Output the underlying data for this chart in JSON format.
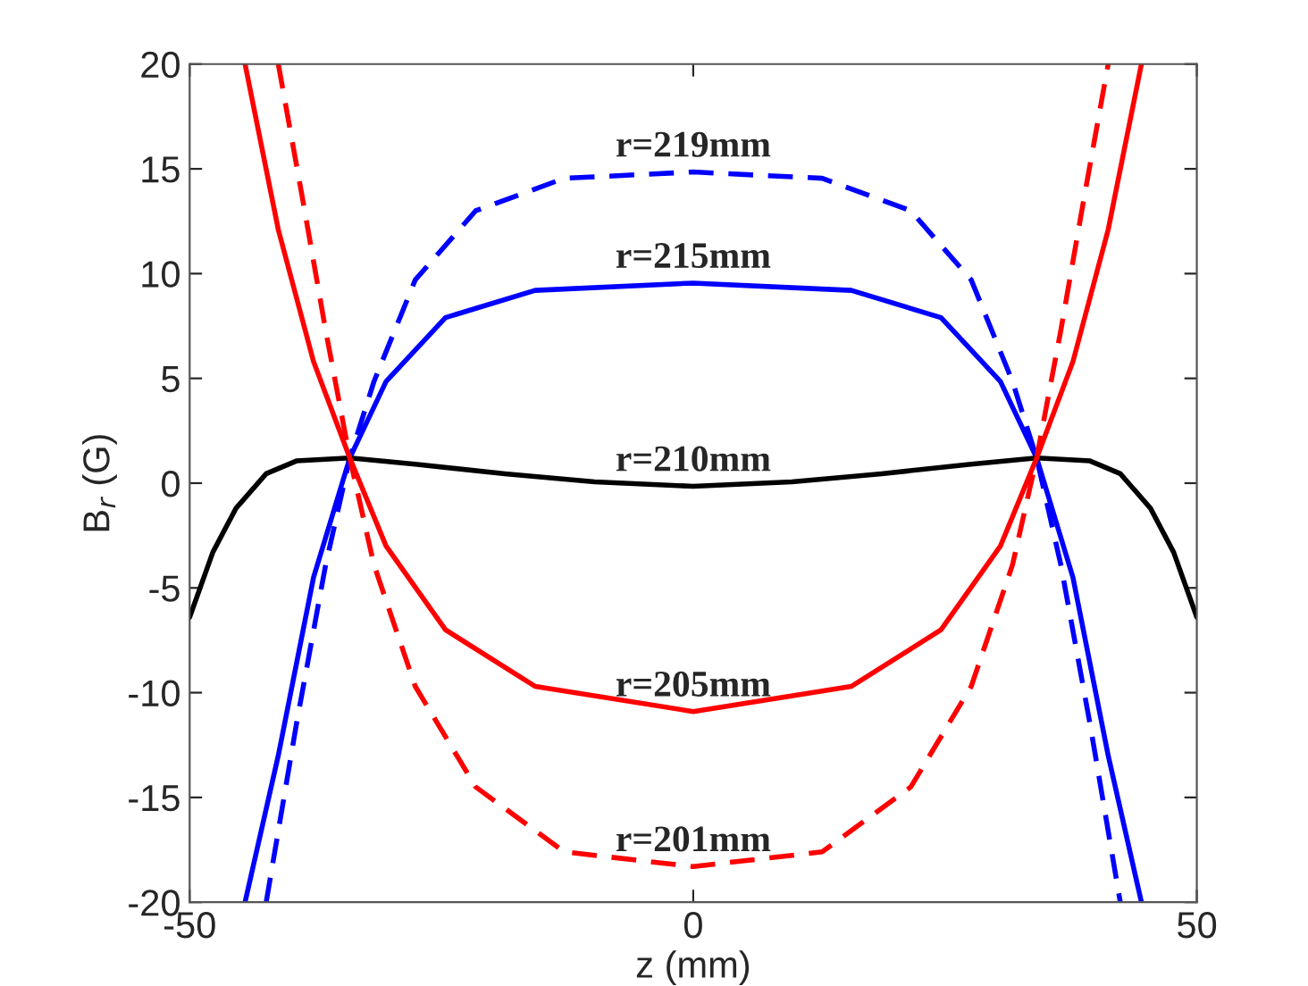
{
  "chart_data": {
    "type": "line",
    "xlabel": "z (mm)",
    "ylabel": "B$_{r}$ (G)",
    "xlim": [
      -50,
      50
    ],
    "xticks": [
      -50,
      0,
      50
    ],
    "ylim": [
      -20,
      20
    ],
    "yticks": [
      -20,
      -15,
      -10,
      -5,
      0,
      5,
      10,
      15,
      20
    ],
    "grid": false,
    "legend": false,
    "series": [
      {
        "name": "r=219mm",
        "color": "#0000ff",
        "line_style": "dashed",
        "x": [
          -42.4,
          -39.4,
          -36.5,
          -34.1,
          -31.7,
          -27.6,
          -21.6,
          -12.8,
          0,
          12.8,
          21.6,
          27.6,
          31.7,
          34.1,
          36.5,
          39.4,
          42.4
        ],
        "values": [
          -20,
          -11.5,
          -3.9,
          1.2,
          4.85,
          9.7,
          13,
          14.55,
          14.85,
          14.55,
          13,
          9.7,
          4.85,
          1.2,
          -3.9,
          -11.5,
          -20
        ]
      },
      {
        "name": "r=215mm",
        "color": "#0000ff",
        "line_style": "solid",
        "x": [
          -44.5,
          -41.2,
          -37.7,
          -34.1,
          -30.5,
          -24.6,
          -15.7,
          0,
          15.7,
          24.6,
          30.5,
          34.1,
          37.7,
          41.2,
          44.5
        ],
        "values": [
          -20,
          -13,
          -4.5,
          1.2,
          4.85,
          7.9,
          9.2,
          9.55,
          9.2,
          7.9,
          4.85,
          1.2,
          -4.5,
          -13,
          -20
        ]
      },
      {
        "name": "r=210mm",
        "color": "#000000",
        "line_style": "solid",
        "x": [
          -50,
          -47.7,
          -45.4,
          -42.4,
          -39.4,
          -34.1,
          -27.6,
          -18.7,
          -9.8,
          0,
          9.8,
          18.7,
          27.6,
          34.1,
          39.4,
          42.4,
          45.4,
          47.7,
          50
        ],
        "values": [
          -6.4,
          -3.3,
          -1.2,
          0.45,
          1.06,
          1.2,
          0.9,
          0.45,
          0.06,
          -0.15,
          0.06,
          0.45,
          0.9,
          1.2,
          1.06,
          0.45,
          -1.2,
          -3.3,
          -6.4
        ]
      },
      {
        "name": "r=205mm",
        "color": "#ff0000",
        "line_style": "solid",
        "x": [
          -44.5,
          -41.2,
          -37.7,
          -34.1,
          -30.5,
          -24.6,
          -15.7,
          0,
          15.7,
          24.6,
          30.5,
          34.1,
          37.7,
          41.2,
          44.5
        ],
        "values": [
          20,
          12.1,
          5.8,
          1.2,
          -3,
          -7,
          -9.7,
          -10.9,
          -9.7,
          -7,
          -3,
          1.2,
          5.8,
          12.1,
          20
        ]
      },
      {
        "name": "r=201mm",
        "color": "#ff0000",
        "line_style": "dashed",
        "x": [
          -41.2,
          -38.8,
          -36.5,
          -34.1,
          -31.7,
          -27.6,
          -21.6,
          -12.8,
          0,
          12.8,
          21.6,
          27.6,
          31.7,
          34.1,
          36.5,
          38.8,
          41.2
        ],
        "values": [
          20,
          13.6,
          7.3,
          1.2,
          -3.9,
          -9.7,
          -14.5,
          -17.6,
          -18.3,
          -17.6,
          -14.5,
          -9.7,
          -3.9,
          1.2,
          7.3,
          13.6,
          20
        ]
      }
    ]
  }
}
